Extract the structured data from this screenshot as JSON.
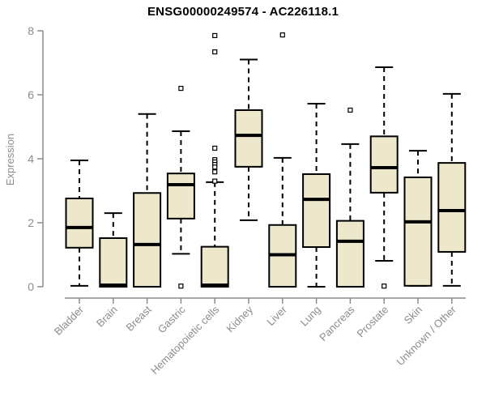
{
  "chart_data": {
    "type": "boxplot",
    "title": "ENSG00000249574 - AC226118.1",
    "ylabel": "Expression",
    "xlabel": "",
    "ylim": [
      0,
      8
    ],
    "yticks": [
      0,
      2,
      4,
      6,
      8
    ],
    "grid": false,
    "legend": "none",
    "colors": {
      "box_fill": "#EDE7CB",
      "box_stroke": "#000000",
      "median": "#000000",
      "whisker": "#000000",
      "outlier_stroke": "#000000",
      "outlier_fill": "#ffffff",
      "axis": "#8C8C8C",
      "tick_label": "#8C8C8C",
      "title": "#000000"
    },
    "categories": [
      "Bladder",
      "Brain",
      "Breast",
      "Gastric",
      "Hematopoietic cells",
      "Kidney",
      "Liver",
      "Lung",
      "Pancreas",
      "Prostate",
      "Skin",
      "Unknown / Other"
    ],
    "series": [
      {
        "category": "Bladder",
        "whisker_low": 0.03,
        "q1": 1.22,
        "median": 1.85,
        "q3": 2.76,
        "whisker_high": 3.95,
        "outliers": []
      },
      {
        "category": "Brain",
        "whisker_low": 0,
        "q1": 0,
        "median": 0.05,
        "q3": 1.52,
        "whisker_high": 2.3,
        "outliers": []
      },
      {
        "category": "Breast",
        "whisker_low": 0,
        "q1": 0,
        "median": 1.32,
        "q3": 2.93,
        "whisker_high": 5.4,
        "outliers": []
      },
      {
        "category": "Gastric",
        "whisker_low": 1.03,
        "q1": 2.13,
        "median": 3.19,
        "q3": 3.54,
        "whisker_high": 4.86,
        "outliers": [
          6.2,
          0.02
        ]
      },
      {
        "category": "Hematopoietic cells",
        "whisker_low": 0,
        "q1": 0,
        "median": 0.05,
        "q3": 1.25,
        "whisker_high": 3.27,
        "outliers": [
          7.85,
          7.34,
          4.33,
          3.97,
          3.9,
          3.82,
          3.74,
          3.59,
          3.3
        ]
      },
      {
        "category": "Kidney",
        "whisker_low": 2.08,
        "q1": 3.75,
        "median": 4.73,
        "q3": 5.52,
        "whisker_high": 7.1,
        "outliers": []
      },
      {
        "category": "Liver",
        "whisker_low": 0,
        "q1": 0,
        "median": 1.0,
        "q3": 1.93,
        "whisker_high": 4.03,
        "outliers": [
          7.87
        ]
      },
      {
        "category": "Lung",
        "whisker_low": 0,
        "q1": 1.24,
        "median": 2.73,
        "q3": 3.52,
        "whisker_high": 5.72,
        "outliers": []
      },
      {
        "category": "Pancreas",
        "whisker_low": 0,
        "q1": 0,
        "median": 1.42,
        "q3": 2.06,
        "whisker_high": 4.46,
        "outliers": [
          5.52
        ]
      },
      {
        "category": "Prostate",
        "whisker_low": 0.81,
        "q1": 2.94,
        "median": 3.72,
        "q3": 4.7,
        "whisker_high": 6.86,
        "outliers": [
          0.02
        ]
      },
      {
        "category": "Skin",
        "whisker_low": 0.03,
        "q1": 0.03,
        "median": 2.03,
        "q3": 3.42,
        "whisker_high": 4.25,
        "outliers": []
      },
      {
        "category": "Unknown / Other",
        "whisker_low": 0.03,
        "q1": 1.09,
        "median": 2.38,
        "q3": 3.87,
        "whisker_high": 6.03,
        "outliers": []
      }
    ]
  }
}
